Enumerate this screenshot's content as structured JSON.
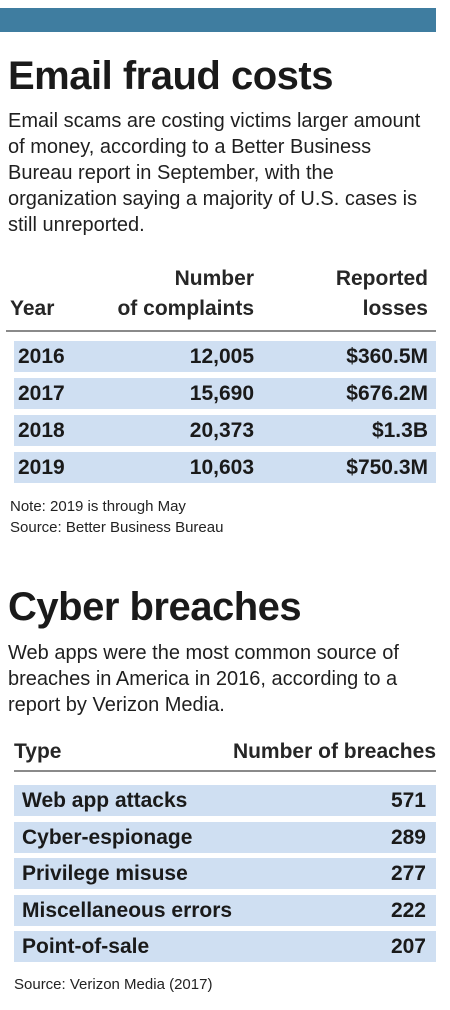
{
  "chart_data": [
    {
      "type": "table",
      "title": "Email fraud costs",
      "intro": "Email scams are costing victims larger amount of money, according to a Better Business Bureau report in September, with the organization saying a majority of U.S. cases is still unreported.",
      "columns": {
        "year": "Year",
        "complaints_line1": "Number",
        "complaints_line2": "of complaints",
        "losses_line1": "Reported",
        "losses_line2": "losses"
      },
      "rows": [
        {
          "year": "2016",
          "complaints": "12,005",
          "losses": "$360.5M"
        },
        {
          "year": "2017",
          "complaints": "15,690",
          "losses": "$676.2M"
        },
        {
          "year": "2018",
          "complaints": "20,373",
          "losses": "$1.3B"
        },
        {
          "year": "2019",
          "complaints": "10,603",
          "losses": "$750.3M"
        }
      ],
      "note": "Note: 2019 is through May",
      "source": "Source: Better Business Bureau"
    },
    {
      "type": "table",
      "title": "Cyber breaches",
      "intro": "Web apps were the most common source of breaches in America in 2016, according to a report by Verizon Media.",
      "columns": {
        "type": "Type",
        "breaches": "Number of breaches"
      },
      "rows": [
        {
          "type": "Web app attacks",
          "breaches": "571"
        },
        {
          "type": "Cyber-espionage",
          "breaches": "289"
        },
        {
          "type": "Privilege misuse",
          "breaches": "277"
        },
        {
          "type": "Miscellaneous errors",
          "breaches": "222"
        },
        {
          "type": "Point-of-sale",
          "breaches": "207"
        }
      ],
      "source": "Source: Verizon Media (2017)"
    }
  ],
  "colors": {
    "accent_bar": "#3f7da0",
    "row_fill": "#cfdff2",
    "rule": "#8a8a8a"
  }
}
